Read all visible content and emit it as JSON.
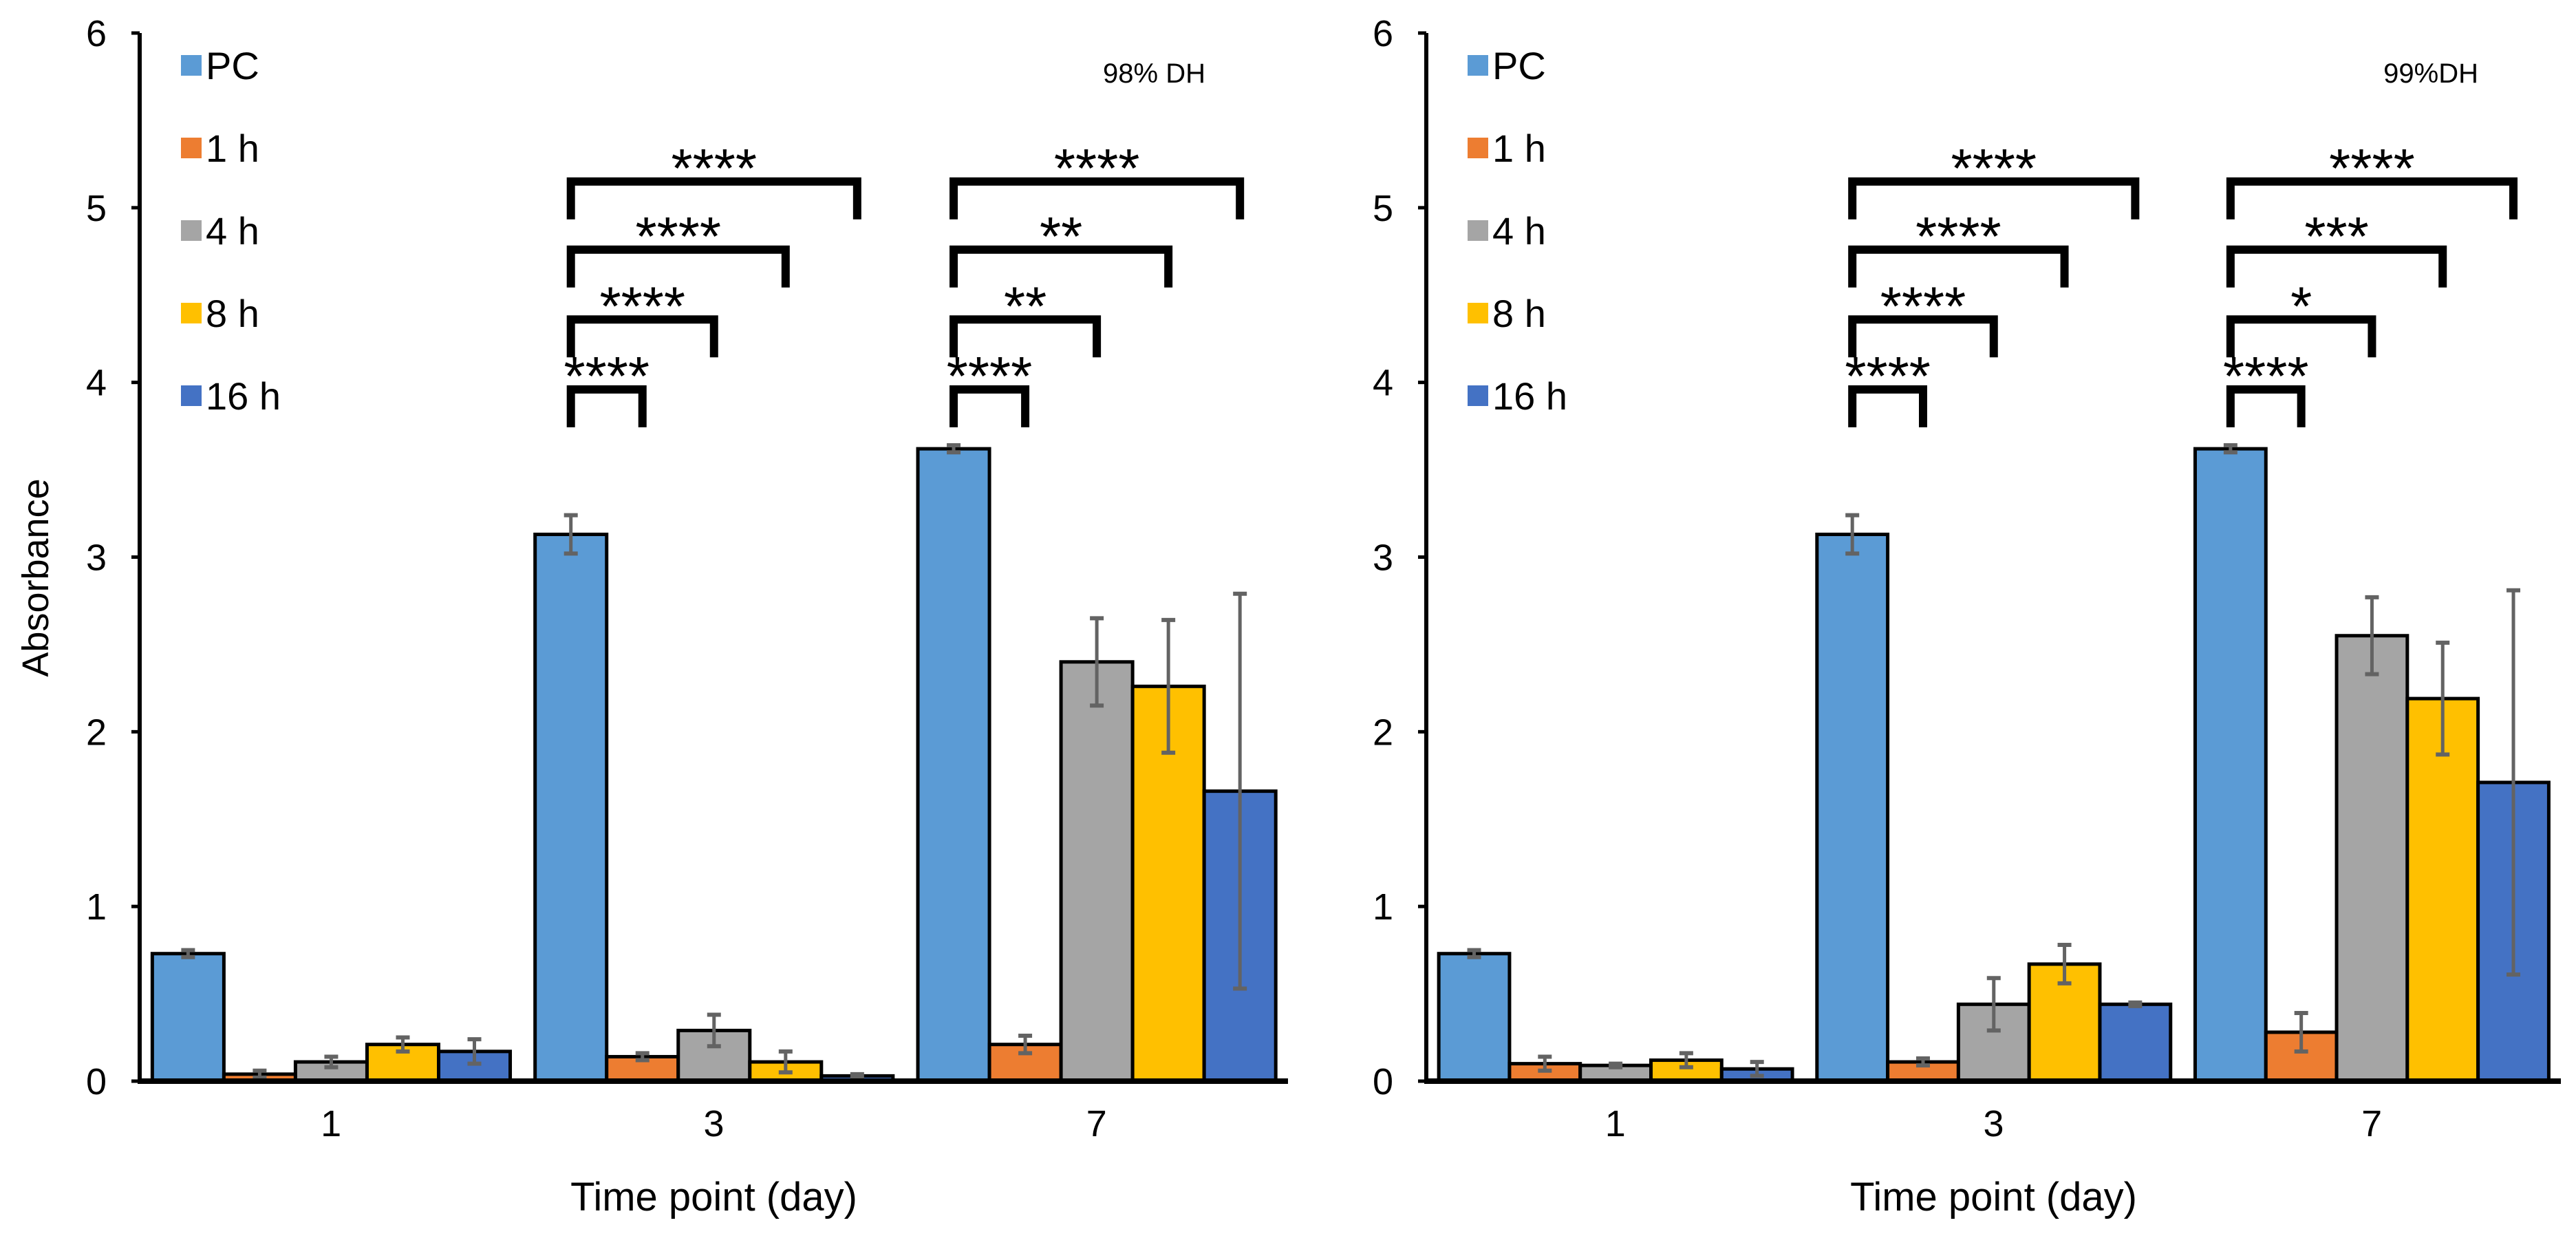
{
  "colors": {
    "PC": "#5b9bd5",
    "1 h": "#ed7d31",
    "4 h": "#a5a5a5",
    "8 h": "#ffc000",
    "16 h": "#4472c4",
    "error": "#636363"
  },
  "chart_data": [
    {
      "type": "bar",
      "title": "98% DH",
      "xlabel": "Time point (day)",
      "ylabel": "Absorbance",
      "ylim": [
        0,
        6
      ],
      "yticks": [
        "0",
        "1",
        "2",
        "3",
        "4",
        "5",
        "6"
      ],
      "categories": [
        "1",
        "3",
        "7"
      ],
      "legend": "top-left",
      "series": [
        {
          "name": "PC",
          "values": [
            0.73,
            3.13,
            3.62
          ],
          "errors": [
            0.02,
            0.11,
            0.02
          ]
        },
        {
          "name": "1 h",
          "values": [
            0.04,
            0.14,
            0.21
          ],
          "errors": [
            0.02,
            0.02,
            0.05
          ]
        },
        {
          "name": "4 h",
          "values": [
            0.11,
            0.29,
            2.4
          ],
          "errors": [
            0.03,
            0.09,
            0.25
          ]
        },
        {
          "name": "8 h",
          "values": [
            0.21,
            0.11,
            2.26
          ],
          "errors": [
            0.04,
            0.06,
            0.38
          ]
        },
        {
          "name": "16 h",
          "values": [
            0.17,
            0.03,
            1.66
          ],
          "errors": [
            0.07,
            0.01,
            1.13
          ]
        }
      ],
      "significance": [
        {
          "category": "3",
          "labels": [
            "****",
            "****",
            "****",
            "****"
          ]
        },
        {
          "category": "7",
          "labels": [
            "****",
            "**",
            "**",
            "****"
          ]
        }
      ]
    },
    {
      "type": "bar",
      "title": "99%DH",
      "xlabel": "Time point (day)",
      "ylabel": "",
      "ylim": [
        0,
        6
      ],
      "yticks": [
        "0",
        "1",
        "2",
        "3",
        "4",
        "5",
        "6"
      ],
      "categories": [
        "1",
        "3",
        "7"
      ],
      "legend": "top-left",
      "series": [
        {
          "name": "PC",
          "values": [
            0.73,
            3.13,
            3.62
          ],
          "errors": [
            0.02,
            0.11,
            0.02
          ]
        },
        {
          "name": "1 h",
          "values": [
            0.1,
            0.11,
            0.28
          ],
          "errors": [
            0.04,
            0.02,
            0.11
          ]
        },
        {
          "name": "4 h",
          "values": [
            0.09,
            0.44,
            2.55
          ],
          "errors": [
            0.01,
            0.15,
            0.22
          ]
        },
        {
          "name": "8 h",
          "values": [
            0.12,
            0.67,
            2.19
          ],
          "errors": [
            0.04,
            0.11,
            0.32
          ]
        },
        {
          "name": "16 h",
          "values": [
            0.07,
            0.44,
            1.71
          ],
          "errors": [
            0.04,
            0.01,
            1.1
          ]
        }
      ],
      "significance": [
        {
          "category": "3",
          "labels": [
            "****",
            "****",
            "****",
            "****"
          ]
        },
        {
          "category": "7",
          "labels": [
            "****",
            "*",
            "***",
            "****"
          ]
        }
      ]
    }
  ]
}
